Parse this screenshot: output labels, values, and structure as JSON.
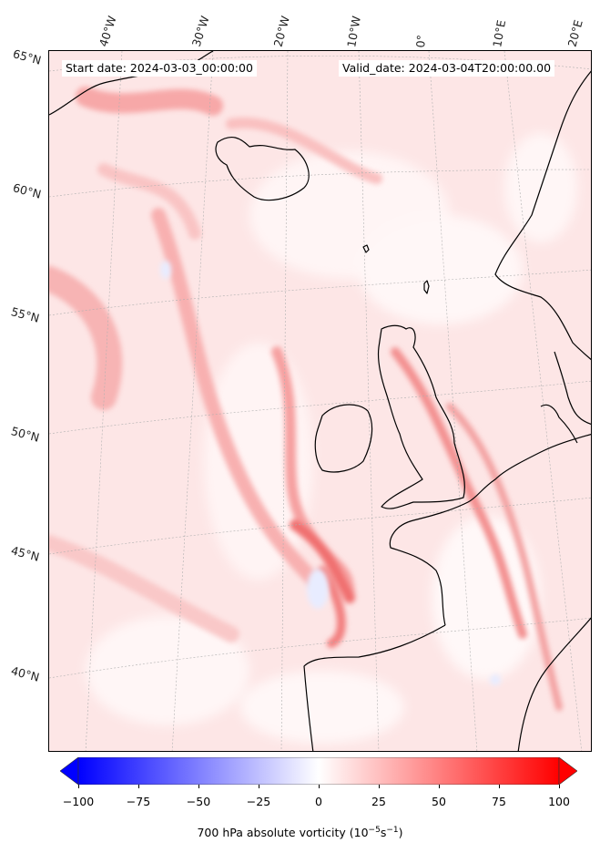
{
  "header": {
    "start_date": "Start date: 2024-03-03_00:00:00",
    "valid_date": "Valid_date: 2024-03-04T20:00:00.00"
  },
  "map": {
    "projection": "polar stereographic",
    "background_color": "#fde6e6",
    "coastline_color": "#000000",
    "longitude_labels": [
      "40°W",
      "30°W",
      "20°W",
      "10°W",
      "0°",
      "10°E",
      "20°E"
    ],
    "latitude_labels": [
      "65°N",
      "60°N",
      "55°N",
      "50°N",
      "45°N",
      "40°N"
    ]
  },
  "colorbar": {
    "tick_labels": [
      "−100",
      "−75",
      "−50",
      "−25",
      "0",
      "25",
      "50",
      "75",
      "100"
    ],
    "range": [
      -100,
      100
    ],
    "negative_color": "#0000ff",
    "positive_color": "#ff0000",
    "label_text": "700 hPa absolute vorticity (10",
    "label_exp1": "−5",
    "label_mid": "s",
    "label_exp2": "−1",
    "label_end": ")"
  }
}
